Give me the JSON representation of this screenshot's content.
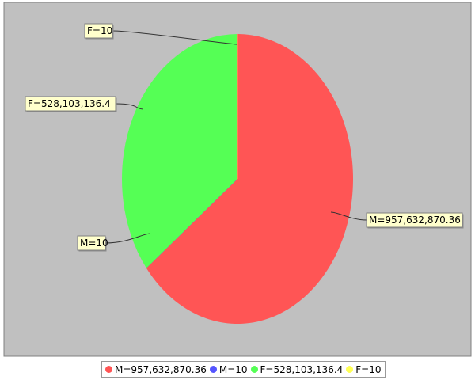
{
  "chart_data": {
    "type": "pie",
    "style": "3d",
    "title": "",
    "slices": [
      {
        "label": "M=957,632,870.36",
        "category": "M",
        "value": 957632870.36,
        "color": "#ff5555"
      },
      {
        "label": "M=10",
        "category": "M",
        "value": 10,
        "color": "#5555ff"
      },
      {
        "label": "F=528,103,136.4",
        "category": "F",
        "value": 528103136.4,
        "color": "#55ff55"
      },
      {
        "label": "F=10",
        "category": "F",
        "value": 10,
        "color": "#ffff55"
      }
    ],
    "legend_position": "bottom",
    "plot_background": "#c0c0c0",
    "label_background": "#ffffcc"
  }
}
